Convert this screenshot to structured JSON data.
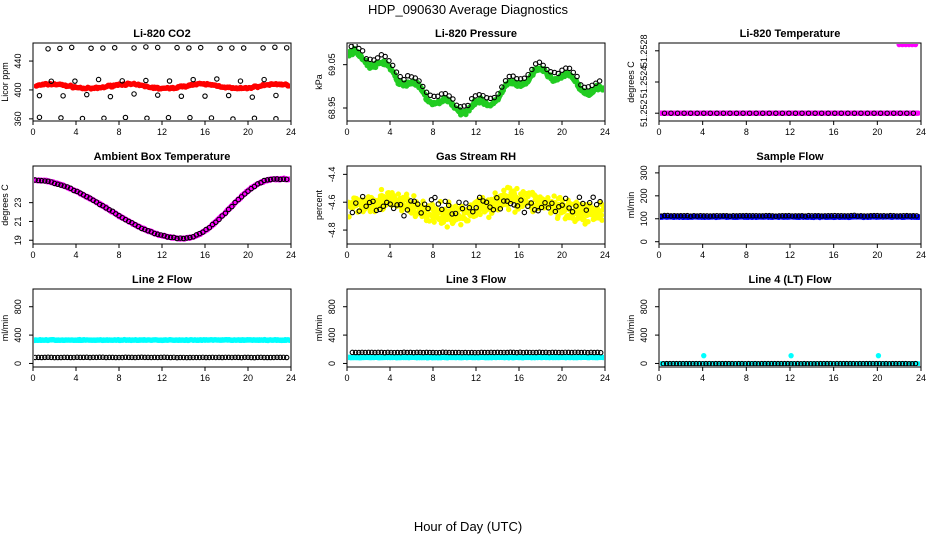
{
  "figure": {
    "title": "HDP_090630  Average Diagnostics",
    "xlabel": "Hour of Day (UTC)"
  },
  "colors": {
    "red": "#ff0000",
    "green": "#22cc22",
    "magenta": "#ff00ff",
    "yellow": "#ffff00",
    "blue": "#0000ff",
    "cyan": "#00ffff",
    "black": "#000000"
  },
  "chart_data": [
    {
      "type": "scatter",
      "title": "Li-820 CO2",
      "ylabel": "Licor ppm",
      "xlim": [
        0,
        24
      ],
      "ylim": [
        357,
        465
      ],
      "xticks": [
        0,
        4,
        8,
        12,
        16,
        20,
        24
      ],
      "yticks": [
        360,
        400,
        440
      ],
      "series": [
        {
          "name": "filled",
          "color": "red",
          "pattern": "co2_fill"
        },
        {
          "name": "open",
          "color": "black",
          "pattern": "co2_open"
        }
      ]
    },
    {
      "type": "scatter",
      "title": "Li-820 Pressure",
      "ylabel": "kPa",
      "xlim": [
        0,
        24
      ],
      "ylim": [
        68.92,
        69.1
      ],
      "xticks": [
        0,
        4,
        8,
        12,
        16,
        20,
        24
      ],
      "yticks": [
        68.95,
        69.05
      ],
      "series": [
        {
          "name": "filled",
          "color": "green",
          "pattern": "pressure_fill"
        },
        {
          "name": "open",
          "color": "black",
          "pattern": "pressure_open"
        }
      ]
    },
    {
      "type": "scatter",
      "title": "Li-820 Temperature",
      "ylabel": "degrees C",
      "xlim": [
        0,
        24
      ],
      "ylim": [
        51.2519,
        51.2529
      ],
      "xticks": [
        0,
        4,
        8,
        12,
        16,
        20,
        24
      ],
      "yticks": [
        51.252,
        51.2524,
        51.2528
      ],
      "series": [
        {
          "name": "filled",
          "color": "magenta",
          "pattern": "litemp_fill"
        },
        {
          "name": "open",
          "color": "black",
          "pattern": "litemp_open"
        },
        {
          "name": "high",
          "color": "magenta",
          "points": [
            [
              22,
              51.25288
            ],
            [
              22.3,
              51.25288
            ],
            [
              22.6,
              51.25288
            ],
            [
              22.9,
              51.25288
            ],
            [
              23.2,
              51.25288
            ],
            [
              23.5,
              51.25288
            ]
          ]
        }
      ]
    },
    {
      "type": "scatter",
      "title": "Ambient Box Temperature",
      "ylabel": "degrees C",
      "xlim": [
        0,
        24
      ],
      "ylim": [
        18.6,
        26.9
      ],
      "xticks": [
        0,
        4,
        8,
        12,
        16,
        20,
        24
      ],
      "yticks": [
        19,
        21,
        23
      ],
      "series": [
        {
          "name": "filled",
          "color": "magenta",
          "pattern": "ambient_fill"
        },
        {
          "name": "open",
          "color": "black",
          "pattern": "ambient_open"
        }
      ]
    },
    {
      "type": "scatter",
      "title": "Gas Stream RH",
      "ylabel": "percent",
      "xlim": [
        0,
        24
      ],
      "ylim": [
        -4.9,
        -4.34
      ],
      "xticks": [
        0,
        4,
        8,
        12,
        16,
        20,
        24
      ],
      "yticks": [
        -4.8,
        -4.6,
        -4.4
      ],
      "series": [
        {
          "name": "filled",
          "color": "yellow",
          "pattern": "rh_fill"
        },
        {
          "name": "open",
          "color": "black",
          "pattern": "rh_open"
        }
      ]
    },
    {
      "type": "scatter",
      "title": "Sample Flow",
      "ylabel": "ml/min",
      "xlim": [
        0,
        24
      ],
      "ylim": [
        -10,
        330
      ],
      "xticks": [
        0,
        4,
        8,
        12,
        16,
        20,
        24
      ],
      "yticks": [
        0,
        100,
        200,
        300
      ],
      "series": [
        {
          "name": "filled",
          "color": "blue",
          "pattern": "sample_fill"
        },
        {
          "name": "open",
          "color": "black",
          "pattern": "sample_open"
        }
      ]
    },
    {
      "type": "scatter",
      "title": "Line 2 Flow",
      "ylabel": "ml/min",
      "xlim": [
        0,
        24
      ],
      "ylim": [
        -50,
        1050
      ],
      "xticks": [
        0,
        4,
        8,
        12,
        16,
        20,
        24
      ],
      "yticks": [
        0,
        400,
        800
      ],
      "series": [
        {
          "name": "filled",
          "color": "cyan",
          "pattern": "line2_fill"
        },
        {
          "name": "open",
          "color": "black",
          "pattern": "line2_open"
        }
      ]
    },
    {
      "type": "scatter",
      "title": "Line 3 Flow",
      "ylabel": "ml/min",
      "xlim": [
        0,
        24
      ],
      "ylim": [
        -50,
        1050
      ],
      "xticks": [
        0,
        4,
        8,
        12,
        16,
        20,
        24
      ],
      "yticks": [
        0,
        400,
        800
      ],
      "series": [
        {
          "name": "filled",
          "color": "cyan",
          "pattern": "line3_fill"
        },
        {
          "name": "open",
          "color": "black",
          "pattern": "line3_open"
        }
      ]
    },
    {
      "type": "scatter",
      "title": "Line 4 (LT) Flow",
      "ylabel": "ml/min",
      "xlim": [
        0,
        24
      ],
      "ylim": [
        -50,
        1050
      ],
      "xticks": [
        0,
        4,
        8,
        12,
        16,
        20,
        24
      ],
      "yticks": [
        0,
        400,
        800
      ],
      "series": [
        {
          "name": "filled",
          "color": "cyan",
          "pattern": "line4_fill"
        },
        {
          "name": "open",
          "color": "black",
          "pattern": "line4_open"
        }
      ]
    }
  ]
}
